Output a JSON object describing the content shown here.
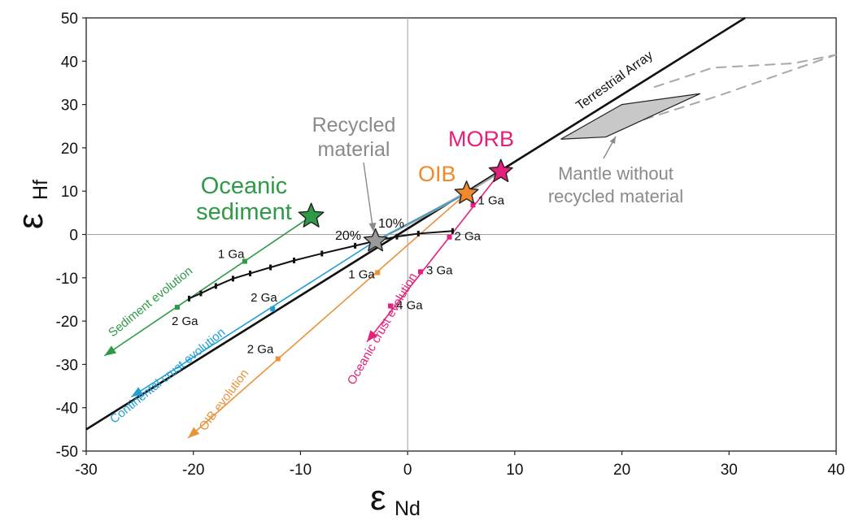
{
  "chart_data": {
    "type": "line",
    "xlabel_main": "ε",
    "xlabel_sub": "Nd",
    "ylabel_main": "ε",
    "ylabel_sub": "Hf",
    "xlim": [
      -30,
      40
    ],
    "ylim": [
      -50,
      50
    ],
    "xticks": [
      "-30",
      "-20",
      "-10",
      "0",
      "10",
      "20",
      "30",
      "40"
    ],
    "yticks": [
      "50",
      "40",
      "30",
      "20",
      "10",
      "0",
      "-10",
      "-20",
      "-30",
      "-40",
      "-50"
    ],
    "zero_lines": true,
    "terrestrial_array": {
      "label": "Terrestrial Array",
      "x": [
        -30,
        31.5
      ],
      "y": [
        -45,
        50
      ]
    },
    "mantle_field": {
      "label": "Mantle without recycled material",
      "polygon": [
        [
          14.3,
          22
        ],
        [
          20,
          30
        ],
        [
          27.3,
          32.5
        ],
        [
          18.5,
          22.5
        ]
      ],
      "dashed_upper": [
        [
          23,
          34
        ],
        [
          28.5,
          38.5
        ],
        [
          36,
          39.5
        ],
        [
          40,
          41.5
        ]
      ],
      "dashed_lower": [
        [
          22,
          26.5
        ],
        [
          29,
          32
        ],
        [
          40,
          41.5
        ]
      ]
    },
    "mixing_lines": {
      "upper": {
        "x": [
          -3,
          1,
          5.5
        ],
        "y": [
          -1.5,
          3.5,
          9.5
        ]
      },
      "lower": {
        "x": [
          -3,
          2,
          5.7
        ],
        "y": [
          -1.5,
          5,
          10
        ]
      }
    },
    "points": [
      {
        "label": "Oceanic sediment",
        "x": -9,
        "y": 4.2,
        "color": "#2e9a48"
      },
      {
        "label": "Recycled material",
        "x": -3,
        "y": -1.5,
        "color": "#9a9a9a"
      },
      {
        "label": "OIB",
        "x": 5.5,
        "y": 9.5,
        "color": "#f08a2a"
      },
      {
        "label": "MORB",
        "x": 8.7,
        "y": 14.5,
        "color": "#e5207a"
      }
    ],
    "percent_labels": [
      "20%",
      "10%"
    ],
    "evolution_lines": [
      {
        "name": "Sediment evolution",
        "color": "#2e9a48",
        "from": [
          -9,
          4.2
        ],
        "to": [
          -28.3,
          -28
        ],
        "ticks": [
          {
            "x": -15.2,
            "y": -6.2,
            "label": "1 Ga"
          },
          {
            "x": -21.5,
            "y": -16.8,
            "label": "2 Ga"
          }
        ]
      },
      {
        "name": "Continental crust evolution",
        "color": "#1e9fd6",
        "from": [
          -3,
          -1.5
        ],
        "to": [
          -25.8,
          -37.5
        ],
        "ticks": [
          {
            "x": -12.6,
            "y": -17.2,
            "label": "2 Ga"
          }
        ]
      },
      {
        "name": "OIB evolution",
        "color": "#e8923a",
        "from": [
          5.5,
          9.5
        ],
        "to": [
          -20.5,
          -47
        ],
        "ticks": [
          {
            "x": -2.8,
            "y": -8.8,
            "label": "1 Ga"
          },
          {
            "x": -12.1,
            "y": -28.7,
            "label": "2 Ga"
          }
        ]
      },
      {
        "name": "Oceanic crust evolution",
        "color": "#e5207a",
        "from": [
          8.7,
          14.5
        ],
        "to": [
          -3.8,
          -24.8
        ],
        "ticks": [
          {
            "x": 6.1,
            "y": 6.8,
            "label": "1 Ga"
          },
          {
            "x": 3.9,
            "y": -0.6,
            "label": "2 Ga"
          },
          {
            "x": 1.2,
            "y": -8.6,
            "label": "3 Ga"
          },
          {
            "x": -1.6,
            "y": -16.5,
            "label": "4 Ga"
          }
        ]
      }
    ],
    "mixing_curve": {
      "color": "#111111",
      "x": [
        -20.4,
        -19.3,
        -17.9,
        -16.3,
        -14.7,
        -12.8,
        -10.6,
        -8.0,
        -4.9,
        -3.0,
        -1.0,
        1.0,
        4.2
      ],
      "y": [
        -14.8,
        -13.6,
        -11.9,
        -10.2,
        -9.0,
        -7.6,
        -6.0,
        -4.4,
        -2.6,
        -1.5,
        -0.5,
        0.2,
        0.8
      ]
    }
  }
}
